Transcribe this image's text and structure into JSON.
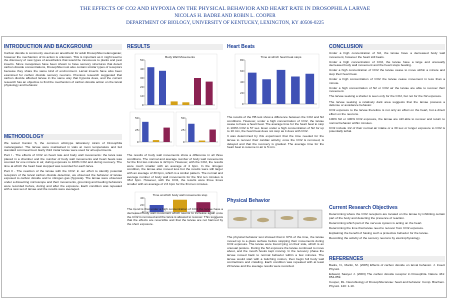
{
  "header": {
    "title": "THE EFFECTS OF CO2 AND HYPOXIA ON THE PHYSICAL BEHAVIOR AND HEART RATE IN DROSOPHILA LARVAE",
    "authors": "NICOLAS H. BADRE AND ROBIN L. COOPER",
    "affiliation": "DEPARTMENT OF BIOLOGY, UNIVERSITY OF KENTUCKY, LEXINGTON, KY 40506-0225"
  },
  "sections": {
    "intro": {
      "heading": "INTRODUCTION AND BACKGROUND",
      "paragraphs": [
        "Carbon dioxide is commonly used as an anesthetic for adult Drosophila melanogaster, however the mechanism of its action is unknown. This is important as it might lead to the discovery of new types of anesthetics that would be innocuous to plants and pest insects. Since mosquitoes have been shown to have sensory structures that detect carbon dioxide concentrations, Drosophila must also contain similar types of receptors because they share the same kind of environment. Larval insects have also been examined for carbon dioxide sensory neurons. Previous research suggested that carbon dioxide affected larvae in the same way that hypoxia does, and the current research has an objective to find the mechanism of carbon dioxide action on the larval physiology and behavior."
      ]
    },
    "methods": {
      "heading": "METHODOLOGY",
      "paragraphs": [
        "We tested Canton S, the common wild-type laboratory strain of Drosophila melanogaster. The larvae were maintained in vials at room temperature and fed standard cornmeal food. Early third instar larvae were used for all experiments.",
        "Part I - The effects of CO2 on heart rate and body wall movements: the larva was placed in a chamber and the number of body wall movements and heart beats was counted for one minute in air, during exposure to 100% CO2 and during recovery. The time at which the heart beat stopped was recorded for each larva.",
        "Part II - The reaction of the larvae with the CO2: in our effort to identify potential receptors of the larval carbon dioxide detection, we observed the behavior of larvae exposed to carbon dioxide and to nitrogen gas (hypoxia). The larvae were observed under a dissecting microscope and their movements, grooming and feeding behaviors were recorded before, during and after the exposure. Each condition was repeated with a new set of larvae and the results were averaged."
      ]
    },
    "results": {
      "heading": "RESULTS",
      "paragraphs": [
        "The results of body wall movements show a difference in all three conditions. The normal and average number of body wall movements for the first two minutes is 42 bpm. However, with the CO2, the results were much smaller with an average of 4 bpm. In the nitrogen condition, the larvae also moved less but the results were still larger with an average of 30 bpm, which is a similar pattern. The normal and average number of body wall movements for the first ten minutes is 38.2 bpm. However, with the CO2, the results were three times smaller with an average of 2.6 bpm for the first ten minutes.",
        "The trend is that under a high concentration of CO2 the larvae have a decreased body wall movement which seems to increase again once the CO2 is removed and the larva is allowed to recover. This suggests that the effects are reversible and that the larvae are not harmed by the short exposure."
      ]
    },
    "heart": {
      "heading": "Heart Beats",
      "paragraphs": [
        "The results of the HB test show a difference between the CO2 and N2 conditions. However, under a high concentration of CO2, the larvae cease to have a heart beat. The average time for the heart beat to stop in 100% CO2 is 57 sec. Even under a high concentration of N2 for up to 10 min, the heart beat does not stop as it does with CO2.",
        "It was determined by this experiment that the time needed for the larvae to recover their cardiac activity, once the CO2 is removed, is delayed and that the recovery is gradual. The average time for the heart beat to resume in air is 5 min."
      ]
    },
    "physical": {
      "heading": "Physical Behavior",
      "paragraphs": [
        "The physical behavior test showed that in 97% of the time, the larvae moved up to a glass surface before stopping their movements during CO2 exposure. The larvae were found lying on their side, which is an unusual posture. During the N2 exposure the larvae continued to move about, and the mouth hooks kept moving. In the recovery phase the larvae moved back to normal behavior within a few minutes. The larvae would start with a twitching motion, then begin full body wall contractions and crawling. Each condition was repeated with at least 20 larvae and the average results were recorded."
      ]
    },
    "conclusion": {
      "heading": "CONCLUSION",
      "items": [
        "Under a high concentration of N2, the larvae have a decreased body wall movement, however the heart still beats.",
        "Under a high concentration of CO2, the larvae have a large and unusually decreased body wall movement and the heart stops beating.",
        "Under a high concentration of CO2 the larvae cease to move within a minute and stop their heart beat.",
        "Under a high concentration of CO2 the larvae cease movement in less than a minute.",
        "Under a high concentration of N2 or CO2 air the larvae are able to recover their movement.",
        "The larvae seeking a shelter is seen only for the CO2, but not for the N2 exposure.",
        "The larvae seeking a relatively dark area suggests that the larvae possess a defense or avoidance behavior.",
        "CO2 exposure to the larvae therefore is not only an effect on the heart, but a direct effect on the neurons.",
        "100% N2 or 100% CO2 exposure, the larvae are still able to recover and return to normal behavior within minutes.",
        "CO2 include 1/2 of their normal air intake or a 30 sec or longer exposure to CO2 is potentially lethal."
      ]
    },
    "objectives": {
      "heading": "Current Research Objectives",
      "paragraphs": [
        "Determining where the CO2 receptors are located on the larvae by inhibiting certain part of the body and detecting the presence of reaction.",
        "Determining which part of the nervous system is acting on the heart.",
        "Determining the time that larvae need to recover from CO2 exposure.",
        "Explaining the benefit of having such a protective behavior for the larvae.",
        "Recording the activity of the sensory neurons by electrophysiology."
      ]
    },
    "references": {
      "heading": "REFERENCES",
      "items": [
        "Badre, N., Martin, M. (2005) Effects of carbon dioxide on larval behavior. J. Insect Physiol.",
        "Edward, Sawyer J. (2003) The carbon dioxide receptor in Drosophila. Nature 431: 854-859.",
        "Cooper, RL. Neurobiology of Drosophila larvae: heart and behavior. Comp. Biochem. Physiol. 140: 1-10."
      ]
    }
  },
  "charts": [
    {
      "title": "Body Wall Movements",
      "values": [
        42,
        38,
        4,
        3,
        30,
        26
      ],
      "colors": [
        "#3f51b5",
        "#3f51b5",
        "#d4a017",
        "#d4a017",
        "#8b2252",
        "#8b2252"
      ],
      "ylim": [
        0,
        50
      ],
      "yticks": [
        0,
        10,
        20,
        30,
        40,
        50
      ]
    },
    {
      "values": [
        42,
        4,
        30
      ],
      "colors": [
        "#3f51b5",
        "#d4a017",
        "#8b2252"
      ],
      "ylim": [
        0,
        50
      ],
      "yticks": [
        0,
        25,
        50
      ]
    },
    {
      "values": [
        38,
        3,
        26
      ],
      "colors": [
        "#3f51b5",
        "#d4a017",
        "#8b2252"
      ],
      "ylim": [
        0,
        50
      ],
      "yticks": [
        0,
        25,
        50
      ]
    },
    {
      "title": "Time at which heart beat stops",
      "values": [
        57,
        45,
        62,
        50,
        55
      ],
      "colors": [
        "#3f51b5",
        "#3f51b5",
        "#3f51b5",
        "#3f51b5",
        "#3f51b5"
      ],
      "ylim": [
        0,
        80
      ],
      "yticks": [
        0,
        20,
        40,
        60,
        80
      ]
    },
    {
      "title": "Time at which body wall movements stop",
      "values": [
        20,
        35,
        28
      ],
      "colors": [
        "#3f51b5",
        "#d4a017",
        "#8b2252"
      ],
      "ylim": [
        0,
        40
      ],
      "yticks": [
        0,
        20,
        40
      ]
    }
  ]
}
